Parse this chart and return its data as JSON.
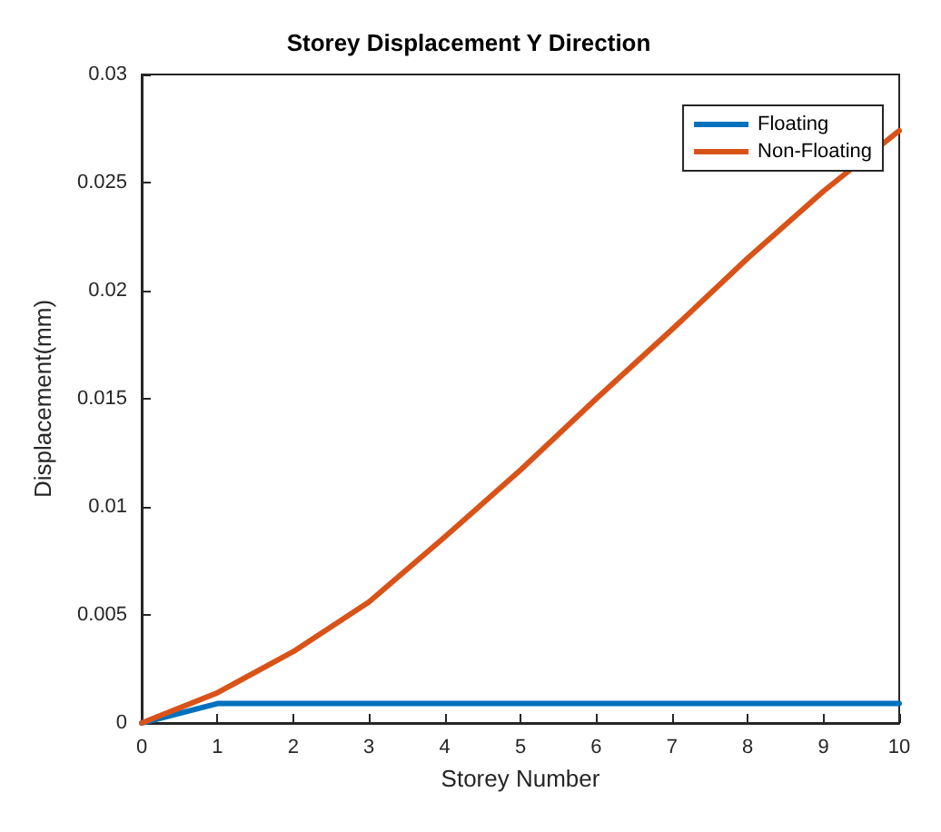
{
  "chart_data": {
    "type": "line",
    "title": "Storey Displacement Y Direction",
    "xlabel": "Storey Number",
    "ylabel": "Displacement(mm)",
    "x": [
      0,
      1,
      2,
      3,
      4,
      5,
      6,
      7,
      8,
      9,
      10
    ],
    "series": [
      {
        "name": "Floating",
        "color": "#0072bd",
        "values": [
          0,
          0.0009,
          0.0009,
          0.0009,
          0.0009,
          0.0009,
          0.0009,
          0.0009,
          0.0009,
          0.0009,
          0.0009
        ]
      },
      {
        "name": "Non-Floating",
        "color": "#d95319",
        "values": [
          0,
          0.0014,
          0.0033,
          0.0056,
          0.0086,
          0.0117,
          0.015,
          0.0182,
          0.0215,
          0.0246,
          0.0274
        ]
      }
    ],
    "xlim": [
      0,
      10
    ],
    "xticks": [
      0,
      1,
      2,
      3,
      4,
      5,
      6,
      7,
      8,
      9,
      10
    ],
    "ylim": [
      0,
      0.03
    ],
    "yticks": [
      0,
      0.005,
      0.01,
      0.015,
      0.02,
      0.025,
      0.03
    ],
    "grid": false,
    "legend": "top right",
    "marker": "none",
    "line_style": "solid"
  }
}
